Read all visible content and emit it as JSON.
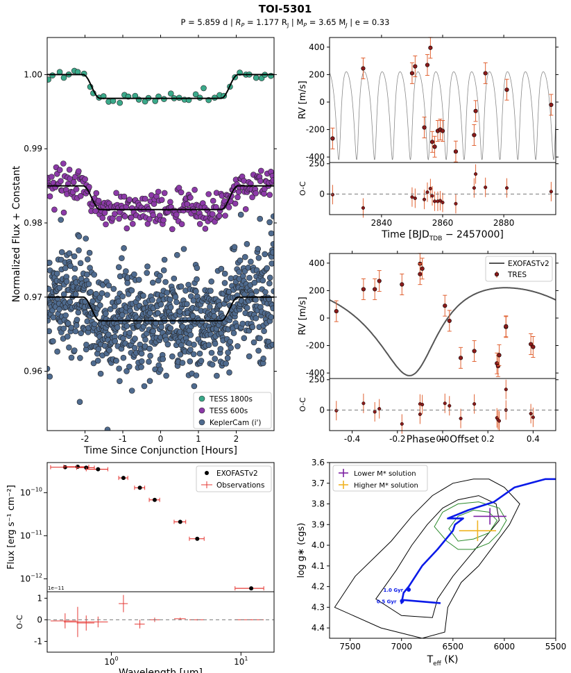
{
  "title": "TOI-5301",
  "subtitle": "P = 5.859 d | R_P = 1.177 R_J | M_P = 3.65 M_J | e = 0.33",
  "subtitle_parts": {
    "p": "P = 5.859 d | ",
    "rp": "R",
    "rp_sub": "P",
    "rp_val": " = 1.177 R",
    "rj_sub": "J",
    "mp": " | M",
    "mp_sub": "P",
    "mp_val": " = 3.65 M",
    "mj_sub": "J",
    "e": " | e = 0.33"
  },
  "chart_data": [
    {
      "id": "transit",
      "type": "scatter",
      "xlabel": "Time Since Conjunction [Hours]",
      "ylabel": "Normalized Flux + Constant",
      "xlim": [
        -3,
        3
      ],
      "ylim": [
        0.952,
        1.005
      ],
      "xticks": [
        "-2",
        "-1",
        "0",
        "1",
        "2"
      ],
      "yticks": [
        "0.96",
        "0.97",
        "0.98",
        "0.99",
        "1.00"
      ],
      "legend": {
        "position": "bottom-right",
        "entries": [
          "TESS 1800s",
          "TESS 600s",
          "KeplerCam (i')"
        ]
      },
      "series": [
        {
          "name": "TESS 1800s",
          "color": "#3aa98a",
          "baseline": 1.0,
          "depth": 0.0032,
          "n": 45,
          "scatter": 0.0004
        },
        {
          "name": "TESS 600s",
          "color": "#8c3aa8",
          "baseline": 0.985,
          "depth": 0.0032,
          "n": 260,
          "scatter": 0.0012
        },
        {
          "name": "KeplerCam (i')",
          "color": "#4f6b8f",
          "baseline": 0.97,
          "depth": 0.0032,
          "n": 900,
          "scatter": 0.0035
        }
      ],
      "transit_shape": {
        "t1": -2.05,
        "t2": -1.6,
        "t3": 1.6,
        "t4": 2.05
      }
    },
    {
      "id": "rv_time",
      "type": "scatter",
      "xlabel": "Time [BJD_TDB − 2457000]",
      "ylabel": "RV [m/s]",
      "resid_ylabel": "O-C",
      "xlim": [
        2823,
        2897
      ],
      "ylim": [
        -440,
        470
      ],
      "resid_ylim": [
        -170,
        260
      ],
      "xticks": [
        "2840",
        "2860",
        "2880"
      ],
      "yticks": [
        "-400",
        "-200",
        "0",
        "200",
        "400"
      ],
      "resid_yticks": [
        "0",
        "250"
      ],
      "period": 5.859,
      "x": [
        2824,
        2834,
        2850,
        2851,
        2854,
        2855,
        2856,
        2856.6,
        2857.4,
        2858.4,
        2859.2,
        2860,
        2864.3,
        2870.3,
        2870.8,
        2874,
        2881,
        2895.5
      ],
      "y": [
        -265,
        245,
        210,
        260,
        -185,
        270,
        395,
        -290,
        -325,
        -210,
        -200,
        -210,
        -360,
        -240,
        -65,
        210,
        90,
        -20
      ],
      "resid": [
        -5,
        -115,
        -25,
        -35,
        -45,
        15,
        45,
        -15,
        -60,
        -60,
        -55,
        -70,
        -80,
        50,
        165,
        55,
        50,
        20
      ]
    },
    {
      "id": "rv_phase",
      "type": "scatter",
      "xlabel": "Phase + Offset",
      "ylabel": "RV [m/s]",
      "resid_ylabel": "O-C",
      "xlim": [
        -0.5,
        0.5
      ],
      "ylim": [
        -440,
        470
      ],
      "resid_ylim": [
        -170,
        260
      ],
      "xticks": [
        "-0.4",
        "-0.2",
        "0.0",
        "0.2",
        "0.4"
      ],
      "yticks": [
        "-400",
        "-200",
        "0",
        "200",
        "400"
      ],
      "resid_yticks": [
        "0",
        "250"
      ],
      "legend": {
        "position": "top-right",
        "entries": [
          "EXOFASTv2",
          "TRES"
        ]
      },
      "model": {
        "K": 320,
        "e": 0.33,
        "omega_deg": 200,
        "phase_peri": -0.06
      },
      "x": [
        -0.47,
        -0.35,
        -0.3,
        -0.28,
        -0.18,
        -0.1,
        -0.1,
        -0.09,
        0.01,
        0.03,
        0.08,
        0.14,
        0.24,
        0.245,
        0.25,
        0.28,
        0.28,
        0.39,
        0.4
      ],
      "y": [
        50,
        210,
        210,
        270,
        245,
        395,
        320,
        360,
        90,
        -20,
        -290,
        -240,
        -330,
        -350,
        -270,
        -65,
        -60,
        -190,
        -210
      ],
      "resid": [
        -5,
        55,
        -15,
        10,
        -115,
        50,
        -35,
        45,
        55,
        35,
        -70,
        50,
        -65,
        -80,
        -90,
        170,
        0,
        -30,
        -60
      ]
    },
    {
      "id": "sed",
      "type": "scatter",
      "xlabel": "Wavelength [μm]",
      "ylabel": "Flux [erg s⁻¹ cm⁻²]",
      "resid_ylabel": "O-C",
      "scale_note": "1e−11",
      "xlim": [
        0.32,
        18
      ],
      "ylim": [
        5e-13,
        5e-10
      ],
      "resid_ylim": [
        -1.5,
        1.3
      ],
      "yticks": [
        "10⁻¹⁰",
        "10⁻¹¹",
        "10⁻¹²"
      ],
      "xticks": [
        "10⁰",
        "10¹"
      ],
      "resid_yticks": [
        "-1",
        "0",
        "1"
      ],
      "legend": {
        "position": "top-right",
        "entries": [
          "EXOFASTv2",
          "Observations"
        ]
      },
      "wavelength": [
        0.44,
        0.55,
        0.64,
        0.79,
        1.24,
        1.66,
        2.16,
        3.4,
        4.6,
        12.0
      ],
      "flux": [
        3.9e-10,
        4e-10,
        3.8e-10,
        3.5e-10,
        2.2e-10,
        1.3e-10,
        6.8e-11,
        2.1e-11,
        8.5e-12,
        6e-13
      ],
      "xerr": [
        0.1,
        0.12,
        0.1,
        0.15,
        0.1,
        0.15,
        0.2,
        0.35,
        0.6,
        3.0
      ],
      "resid": [
        -0.05,
        -0.1,
        -0.15,
        -0.1,
        0.75,
        -0.2,
        0.0,
        0.05,
        0.0,
        0.0
      ],
      "resid_err": [
        0.35,
        0.7,
        0.35,
        0.25,
        0.4,
        0.2,
        0.1,
        0.05,
        0.03,
        0.02
      ]
    },
    {
      "id": "hr",
      "type": "line",
      "xlabel": "T_eff (K)",
      "ylabel": "log g* (cgs)",
      "xlim": [
        7700,
        5500
      ],
      "ylim": [
        4.45,
        3.6
      ],
      "xticks": [
        "7500",
        "7000",
        "6500",
        "6000",
        "5500"
      ],
      "yticks": [
        "3.6",
        "3.7",
        "3.8",
        "3.9",
        "4.0",
        "4.1",
        "4.2",
        "4.3",
        "4.4"
      ],
      "legend": {
        "position": "top-left",
        "entries": [
          "Lower M* solution",
          "Higher M* solution"
        ]
      },
      "age_labels": [
        "1.0 Gyr",
        "0.5 Gyr"
      ],
      "track_points": [
        [
          6620,
          4.28
        ],
        [
          6980,
          4.265
        ],
        [
          7000,
          4.28
        ],
        [
          6980,
          4.23
        ],
        [
          6930,
          4.2
        ],
        [
          6800,
          4.1
        ],
        [
          6650,
          4.02
        ],
        [
          6500,
          3.93
        ],
        [
          6480,
          3.9
        ],
        [
          6400,
          3.87
        ],
        [
          6550,
          3.87
        ],
        [
          6350,
          3.83
        ],
        [
          6100,
          3.79
        ],
        [
          5900,
          3.72
        ],
        [
          5600,
          3.68
        ],
        [
          5500,
          3.68
        ]
      ],
      "age_points": [
        [
          6930,
          4.215
        ],
        [
          6995,
          4.27
        ]
      ],
      "solutions": [
        {
          "name": "Lower M* solution",
          "color": "#7b1fa2",
          "teff": 6140,
          "logg": 3.86,
          "teff_err": 160,
          "logg_err": 0.04
        },
        {
          "name": "Higher M* solution",
          "color": "#f0b323",
          "teff": 6260,
          "logg": 3.93,
          "teff_err": 180,
          "logg_err": 0.05
        }
      ]
    }
  ],
  "colors": {
    "rv_point": "#8b1a1a",
    "rv_err": "#e06030",
    "accent_blue": "#0a1ae8",
    "green": "#2a8a2a"
  }
}
